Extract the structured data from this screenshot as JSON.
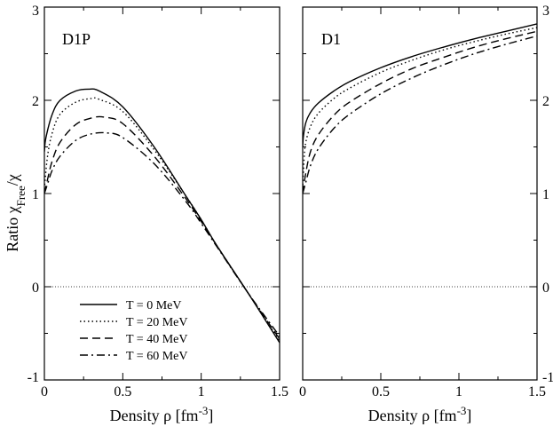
{
  "chart_data": [
    {
      "type": "line",
      "panel_label": "D1P",
      "xlabel": "Density ρ [fm⁻³]",
      "ylabel": "Ratio χFree/χ",
      "xlim": [
        0,
        1.5
      ],
      "ylim": [
        -1,
        3
      ],
      "x_ticks": [
        0,
        0.5,
        1,
        1.5
      ],
      "x_tick_labels": [
        "0",
        "0.5",
        "1",
        "1.5"
      ],
      "y_ticks": [
        -1,
        0,
        1,
        2,
        3
      ],
      "y_tick_labels": [
        "-1",
        "0",
        "1",
        "2",
        "3"
      ],
      "reference_line": {
        "y": 0,
        "style": "dotted"
      },
      "legend_position": "lower-left",
      "series": [
        {
          "name": "T = 0 MeV",
          "style": "solid",
          "x": [
            0,
            0.01,
            0.05,
            0.1,
            0.2,
            0.28,
            0.35,
            0.5,
            0.7,
            0.9,
            1.0,
            1.1,
            1.3,
            1.5
          ],
          "y": [
            1.45,
            1.6,
            1.85,
            2.0,
            2.1,
            2.12,
            2.1,
            1.93,
            1.5,
            0.98,
            0.72,
            0.44,
            -0.07,
            -0.6
          ]
        },
        {
          "name": "T = 20 MeV",
          "style": "dotted",
          "x": [
            0,
            0.02,
            0.05,
            0.1,
            0.2,
            0.3,
            0.35,
            0.5,
            0.7,
            0.9,
            1.0,
            1.1,
            1.3,
            1.5
          ],
          "y": [
            1.05,
            1.4,
            1.65,
            1.85,
            1.98,
            2.02,
            2.01,
            1.88,
            1.47,
            0.98,
            0.72,
            0.44,
            -0.07,
            -0.58
          ]
        },
        {
          "name": "T = 40 MeV",
          "style": "dashed",
          "x": [
            0,
            0.02,
            0.05,
            0.1,
            0.2,
            0.3,
            0.38,
            0.5,
            0.7,
            0.9,
            1.0,
            1.1,
            1.3,
            1.5
          ],
          "y": [
            1.0,
            1.15,
            1.35,
            1.55,
            1.74,
            1.81,
            1.82,
            1.75,
            1.4,
            0.95,
            0.7,
            0.44,
            -0.07,
            -0.56
          ]
        },
        {
          "name": "T = 60 MeV",
          "style": "dash-dot",
          "x": [
            0,
            0.02,
            0.05,
            0.1,
            0.2,
            0.3,
            0.4,
            0.5,
            0.7,
            0.9,
            1.0,
            1.1,
            1.3,
            1.5
          ],
          "y": [
            1.0,
            1.1,
            1.25,
            1.4,
            1.57,
            1.64,
            1.65,
            1.6,
            1.32,
            0.92,
            0.68,
            0.43,
            -0.07,
            -0.53
          ]
        }
      ]
    },
    {
      "type": "line",
      "panel_label": "D1",
      "xlabel": "Density ρ [fm⁻³]",
      "xlim": [
        0,
        1.5
      ],
      "ylim": [
        -1,
        3
      ],
      "x_ticks": [
        0,
        0.5,
        1,
        1.5
      ],
      "x_tick_labels": [
        "0",
        "0.5",
        "1",
        "1.5"
      ],
      "y_ticks": [
        -1,
        0,
        1,
        2,
        3
      ],
      "y_tick_labels": [
        "-1",
        "0",
        "1",
        "2",
        "3"
      ],
      "reference_line": {
        "y": 0,
        "style": "dotted"
      },
      "series": [
        {
          "name": "T = 0 MeV",
          "style": "solid",
          "x": [
            0,
            0.005,
            0.02,
            0.05,
            0.1,
            0.2,
            0.3,
            0.5,
            0.7,
            0.9,
            1.1,
            1.3,
            1.5
          ],
          "y": [
            1.5,
            1.62,
            1.76,
            1.87,
            1.97,
            2.1,
            2.2,
            2.35,
            2.47,
            2.57,
            2.66,
            2.74,
            2.82
          ]
        },
        {
          "name": "T = 20 MeV",
          "style": "dotted",
          "x": [
            0,
            0.01,
            0.02,
            0.05,
            0.1,
            0.2,
            0.3,
            0.5,
            0.7,
            0.9,
            1.1,
            1.3,
            1.5
          ],
          "y": [
            1.05,
            1.4,
            1.55,
            1.72,
            1.86,
            2.02,
            2.13,
            2.3,
            2.43,
            2.54,
            2.63,
            2.71,
            2.78
          ]
        },
        {
          "name": "T = 40 MeV",
          "style": "dashed",
          "x": [
            0,
            0.02,
            0.05,
            0.1,
            0.2,
            0.3,
            0.5,
            0.7,
            0.9,
            1.1,
            1.3,
            1.5
          ],
          "y": [
            1.0,
            1.22,
            1.45,
            1.63,
            1.84,
            1.98,
            2.18,
            2.34,
            2.46,
            2.57,
            2.66,
            2.74
          ]
        },
        {
          "name": "T = 60 MeV",
          "style": "dash-dot",
          "x": [
            0,
            0.02,
            0.05,
            0.1,
            0.2,
            0.3,
            0.5,
            0.7,
            0.9,
            1.1,
            1.3,
            1.5
          ],
          "y": [
            1.0,
            1.12,
            1.3,
            1.48,
            1.7,
            1.85,
            2.07,
            2.24,
            2.38,
            2.5,
            2.6,
            2.69
          ]
        }
      ]
    }
  ],
  "axis_text": {
    "ylabel_main": "Ratio χ",
    "ylabel_sub": "Free",
    "ylabel_tail": "/χ",
    "xlabel_main": "Density ρ [fm",
    "xlabel_sup": "-3",
    "xlabel_tail": "]"
  },
  "colors": {
    "line": "#000000",
    "background": "#ffffff"
  }
}
